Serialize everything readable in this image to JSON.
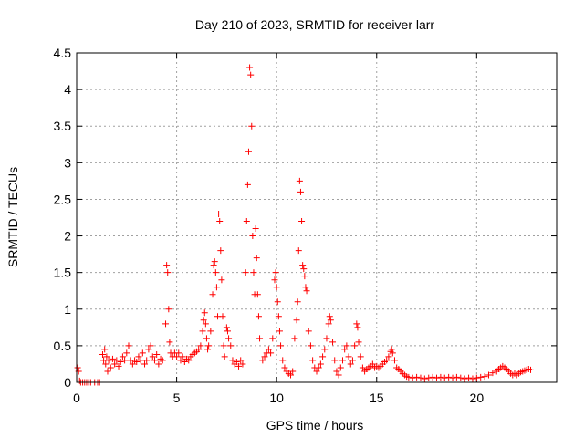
{
  "chart_data": {
    "type": "scatter",
    "title": "Day 210 of 2023, SRMTID for receiver larr",
    "xlabel": "GPS time / hours",
    "ylabel": "SRMTID / TECUs",
    "xlim": [
      0,
      24
    ],
    "ylim": [
      0,
      4.5
    ],
    "x_ticks": [
      0,
      5,
      10,
      15,
      20
    ],
    "x_tick_labels": [
      "0",
      "5",
      "10",
      "15",
      "20"
    ],
    "y_ticks": [
      0,
      0.5,
      1,
      1.5,
      2,
      2.5,
      3,
      3.5,
      4,
      4.5
    ],
    "y_tick_labels": [
      "0",
      "0.5",
      "1",
      "1.5",
      "2",
      "2.5",
      "3",
      "3.5",
      "4",
      "4.5"
    ],
    "grid": true,
    "marker": "plus",
    "color": "#ff0000",
    "series": [
      {
        "name": "SRMTID",
        "points": [
          [
            0.05,
            0.2
          ],
          [
            0.1,
            0.15
          ],
          [
            0.15,
            0.02
          ],
          [
            0.2,
            0.0
          ],
          [
            0.3,
            0.0
          ],
          [
            0.4,
            0.0
          ],
          [
            0.5,
            0.0
          ],
          [
            0.6,
            0.0
          ],
          [
            0.7,
            0.0
          ],
          [
            0.9,
            0.0
          ],
          [
            1.05,
            0.0
          ],
          [
            1.15,
            0.0
          ],
          [
            1.3,
            0.38
          ],
          [
            1.35,
            0.3
          ],
          [
            1.4,
            0.45
          ],
          [
            1.45,
            0.25
          ],
          [
            1.5,
            0.35
          ],
          [
            1.55,
            0.15
          ],
          [
            1.6,
            0.3
          ],
          [
            1.7,
            0.2
          ],
          [
            1.8,
            0.32
          ],
          [
            1.9,
            0.25
          ],
          [
            2.0,
            0.3
          ],
          [
            2.1,
            0.22
          ],
          [
            2.2,
            0.28
          ],
          [
            2.3,
            0.35
          ],
          [
            2.4,
            0.3
          ],
          [
            2.5,
            0.4
          ],
          [
            2.6,
            0.5
          ],
          [
            2.7,
            0.3
          ],
          [
            2.8,
            0.25
          ],
          [
            2.9,
            0.3
          ],
          [
            3.0,
            0.28
          ],
          [
            3.1,
            0.35
          ],
          [
            3.2,
            0.3
          ],
          [
            3.3,
            0.4
          ],
          [
            3.4,
            0.25
          ],
          [
            3.5,
            0.3
          ],
          [
            3.6,
            0.45
          ],
          [
            3.7,
            0.5
          ],
          [
            3.8,
            0.35
          ],
          [
            3.9,
            0.3
          ],
          [
            4.0,
            0.38
          ],
          [
            4.1,
            0.25
          ],
          [
            4.2,
            0.32
          ],
          [
            4.3,
            0.3
          ],
          [
            4.45,
            0.8
          ],
          [
            4.5,
            1.6
          ],
          [
            4.55,
            1.5
          ],
          [
            4.6,
            1.0
          ],
          [
            4.65,
            0.55
          ],
          [
            4.7,
            0.4
          ],
          [
            4.8,
            0.35
          ],
          [
            4.9,
            0.4
          ],
          [
            5.0,
            0.35
          ],
          [
            5.1,
            0.4
          ],
          [
            5.2,
            0.3
          ],
          [
            5.3,
            0.35
          ],
          [
            5.4,
            0.28
          ],
          [
            5.5,
            0.32
          ],
          [
            5.6,
            0.3
          ],
          [
            5.7,
            0.35
          ],
          [
            5.8,
            0.38
          ],
          [
            5.9,
            0.4
          ],
          [
            6.0,
            0.42
          ],
          [
            6.1,
            0.45
          ],
          [
            6.2,
            0.5
          ],
          [
            6.3,
            0.7
          ],
          [
            6.35,
            0.85
          ],
          [
            6.4,
            0.95
          ],
          [
            6.45,
            0.8
          ],
          [
            6.5,
            0.6
          ],
          [
            6.55,
            0.45
          ],
          [
            6.6,
            0.5
          ],
          [
            6.7,
            0.7
          ],
          [
            6.8,
            1.2
          ],
          [
            6.85,
            1.6
          ],
          [
            6.9,
            1.65
          ],
          [
            6.95,
            1.5
          ],
          [
            7.0,
            1.3
          ],
          [
            7.05,
            0.9
          ],
          [
            7.1,
            2.3
          ],
          [
            7.15,
            2.2
          ],
          [
            7.2,
            1.8
          ],
          [
            7.25,
            1.4
          ],
          [
            7.3,
            0.9
          ],
          [
            7.35,
            0.5
          ],
          [
            7.4,
            0.35
          ],
          [
            7.5,
            0.75
          ],
          [
            7.55,
            0.7
          ],
          [
            7.6,
            0.6
          ],
          [
            7.7,
            0.5
          ],
          [
            7.8,
            0.3
          ],
          [
            7.9,
            0.25
          ],
          [
            8.0,
            0.28
          ],
          [
            8.1,
            0.22
          ],
          [
            8.2,
            0.3
          ],
          [
            8.3,
            0.25
          ],
          [
            8.45,
            1.5
          ],
          [
            8.5,
            2.2
          ],
          [
            8.55,
            2.7
          ],
          [
            8.6,
            3.15
          ],
          [
            8.65,
            4.3
          ],
          [
            8.7,
            4.2
          ],
          [
            8.75,
            3.5
          ],
          [
            8.8,
            2.0
          ],
          [
            8.85,
            1.5
          ],
          [
            8.9,
            1.2
          ],
          [
            8.95,
            2.1
          ],
          [
            9.0,
            1.7
          ],
          [
            9.05,
            1.2
          ],
          [
            9.1,
            0.9
          ],
          [
            9.15,
            0.6
          ],
          [
            9.3,
            0.3
          ],
          [
            9.4,
            0.35
          ],
          [
            9.5,
            0.4
          ],
          [
            9.6,
            0.45
          ],
          [
            9.7,
            0.4
          ],
          [
            9.8,
            0.6
          ],
          [
            9.9,
            1.4
          ],
          [
            9.95,
            1.5
          ],
          [
            10.0,
            1.3
          ],
          [
            10.05,
            1.1
          ],
          [
            10.1,
            0.9
          ],
          [
            10.15,
            0.7
          ],
          [
            10.2,
            0.5
          ],
          [
            10.3,
            0.3
          ],
          [
            10.4,
            0.2
          ],
          [
            10.5,
            0.15
          ],
          [
            10.6,
            0.12
          ],
          [
            10.7,
            0.1
          ],
          [
            10.8,
            0.15
          ],
          [
            10.9,
            0.6
          ],
          [
            11.0,
            0.85
          ],
          [
            11.05,
            1.1
          ],
          [
            11.1,
            1.8
          ],
          [
            11.15,
            2.75
          ],
          [
            11.2,
            2.6
          ],
          [
            11.25,
            2.2
          ],
          [
            11.3,
            1.6
          ],
          [
            11.35,
            1.55
          ],
          [
            11.4,
            1.45
          ],
          [
            11.45,
            1.3
          ],
          [
            11.5,
            1.25
          ],
          [
            11.6,
            0.7
          ],
          [
            11.7,
            0.5
          ],
          [
            11.8,
            0.3
          ],
          [
            11.9,
            0.2
          ],
          [
            12.0,
            0.15
          ],
          [
            12.1,
            0.2
          ],
          [
            12.2,
            0.25
          ],
          [
            12.3,
            0.35
          ],
          [
            12.4,
            0.45
          ],
          [
            12.5,
            0.6
          ],
          [
            12.6,
            0.8
          ],
          [
            12.65,
            0.9
          ],
          [
            12.7,
            0.85
          ],
          [
            12.8,
            0.55
          ],
          [
            12.9,
            0.3
          ],
          [
            13.0,
            0.15
          ],
          [
            13.1,
            0.1
          ],
          [
            13.2,
            0.2
          ],
          [
            13.3,
            0.3
          ],
          [
            13.4,
            0.45
          ],
          [
            13.5,
            0.5
          ],
          [
            13.6,
            0.35
          ],
          [
            13.7,
            0.25
          ],
          [
            13.8,
            0.3
          ],
          [
            13.9,
            0.5
          ],
          [
            14.0,
            0.8
          ],
          [
            14.05,
            0.75
          ],
          [
            14.1,
            0.55
          ],
          [
            14.2,
            0.35
          ],
          [
            14.3,
            0.2
          ],
          [
            14.4,
            0.15
          ],
          [
            14.5,
            0.18
          ],
          [
            14.6,
            0.2
          ],
          [
            14.7,
            0.22
          ],
          [
            14.8,
            0.25
          ],
          [
            14.9,
            0.2
          ],
          [
            15.0,
            0.22
          ],
          [
            15.1,
            0.2
          ],
          [
            15.2,
            0.22
          ],
          [
            15.3,
            0.25
          ],
          [
            15.4,
            0.28
          ],
          [
            15.5,
            0.3
          ],
          [
            15.6,
            0.35
          ],
          [
            15.7,
            0.42
          ],
          [
            15.75,
            0.45
          ],
          [
            15.8,
            0.4
          ],
          [
            15.9,
            0.3
          ],
          [
            16.0,
            0.2
          ],
          [
            16.1,
            0.18
          ],
          [
            16.2,
            0.15
          ],
          [
            16.3,
            0.12
          ],
          [
            16.4,
            0.1
          ],
          [
            16.5,
            0.08
          ],
          [
            16.6,
            0.07
          ],
          [
            16.8,
            0.06
          ],
          [
            17.0,
            0.07
          ],
          [
            17.2,
            0.06
          ],
          [
            17.4,
            0.05
          ],
          [
            17.6,
            0.06
          ],
          [
            17.8,
            0.07
          ],
          [
            18.0,
            0.06
          ],
          [
            18.2,
            0.07
          ],
          [
            18.4,
            0.06
          ],
          [
            18.6,
            0.07
          ],
          [
            18.8,
            0.06
          ],
          [
            19.0,
            0.07
          ],
          [
            19.2,
            0.06
          ],
          [
            19.4,
            0.05
          ],
          [
            19.6,
            0.06
          ],
          [
            19.8,
            0.05
          ],
          [
            20.0,
            0.06
          ],
          [
            20.2,
            0.07
          ],
          [
            20.4,
            0.08
          ],
          [
            20.6,
            0.1
          ],
          [
            20.8,
            0.13
          ],
          [
            21.0,
            0.15
          ],
          [
            21.1,
            0.18
          ],
          [
            21.2,
            0.2
          ],
          [
            21.3,
            0.22
          ],
          [
            21.4,
            0.2
          ],
          [
            21.5,
            0.18
          ],
          [
            21.6,
            0.15
          ],
          [
            21.7,
            0.12
          ],
          [
            21.8,
            0.1
          ],
          [
            21.9,
            0.12
          ],
          [
            22.0,
            0.1
          ],
          [
            22.1,
            0.12
          ],
          [
            22.2,
            0.14
          ],
          [
            22.3,
            0.15
          ],
          [
            22.4,
            0.16
          ],
          [
            22.5,
            0.17
          ],
          [
            22.6,
            0.18
          ],
          [
            22.7,
            0.17
          ]
        ]
      }
    ]
  }
}
